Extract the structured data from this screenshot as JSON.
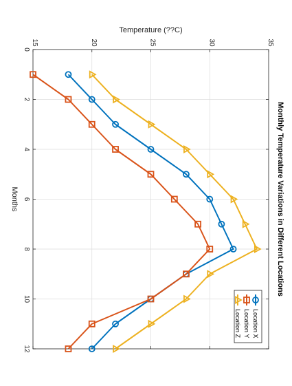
{
  "chart_data": {
    "type": "line",
    "orientation": "rotated-90-clockwise",
    "title": "Monthly Temperature Variations in Different Locations",
    "xlabel": "Months",
    "ylabel": "Temperature (??C)",
    "xlim": [
      0,
      12
    ],
    "ylim": [
      15,
      35
    ],
    "xticks": [
      0,
      2,
      4,
      6,
      8,
      10,
      12
    ],
    "yticks": [
      15,
      20,
      25,
      30,
      35
    ],
    "grid": true,
    "legend_position": "bottom-right",
    "x": [
      1,
      2,
      3,
      4,
      5,
      6,
      7,
      8,
      9,
      10,
      11,
      12
    ],
    "series": [
      {
        "name": "Location X",
        "color": "#0072BD",
        "marker": "circle",
        "values": [
          18,
          20,
          22,
          25,
          28,
          30,
          31,
          32,
          28,
          25,
          22,
          20
        ]
      },
      {
        "name": "Location Y",
        "color": "#D95319",
        "marker": "square",
        "values": [
          15,
          18,
          20,
          22,
          25,
          27,
          29,
          30,
          28,
          25,
          20,
          18
        ]
      },
      {
        "name": "Location Z",
        "color": "#EDB120",
        "marker": "triangle-right",
        "values": [
          20,
          22,
          25,
          28,
          30,
          32,
          33,
          34,
          30,
          28,
          25,
          22
        ]
      }
    ]
  }
}
